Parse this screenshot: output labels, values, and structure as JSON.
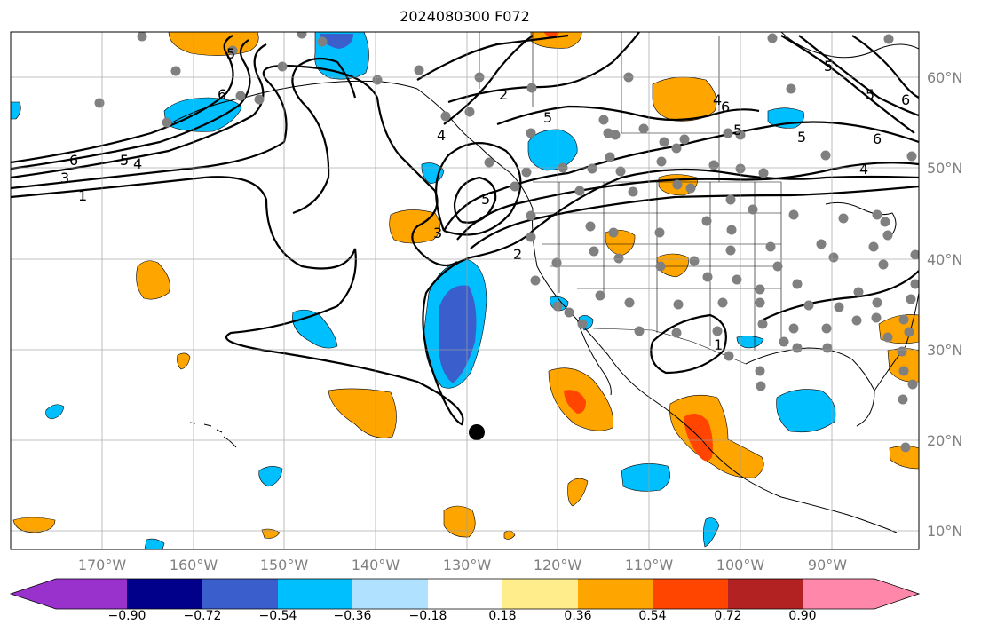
{
  "title": "2024080300 F072",
  "map": {
    "lon_labels": [
      "170°W",
      "160°W",
      "150°W",
      "140°W",
      "130°W",
      "120°W",
      "110°W",
      "100°W",
      "90°W"
    ],
    "lat_labels": [
      "60°N",
      "50°N",
      "40°N",
      "30°N",
      "20°N",
      "10°N"
    ],
    "contour_labels": [
      "1",
      "2",
      "3",
      "4",
      "5",
      "6",
      "5",
      "2",
      "3",
      "5",
      "5",
      "6",
      "4",
      "6",
      "5",
      "6",
      "5",
      "4",
      "6",
      "4",
      "5",
      "5",
      "1"
    ],
    "anomaly_colors": {
      "orange": "#ffa500",
      "red_orange": "#ff4500",
      "dark_red": "#b22222",
      "deep_sky_blue": "#00bfff",
      "royal_blue": "#3a5fcd",
      "light_blue": "#b0e2ff"
    },
    "station_marker_color": "#808080",
    "storm_marker_color": "#000000"
  },
  "colorbar": {
    "tick_labels": [
      "−0.90",
      "−0.72",
      "−0.54",
      "−0.36",
      "−0.18",
      "0.18",
      "0.36",
      "0.54",
      "0.72",
      "0.90"
    ],
    "colors": [
      "#9932cc",
      "#00008b",
      "#3a5fcd",
      "#00bfff",
      "#b0e2ff",
      "#ffffff",
      "#ffec8b",
      "#ffa500",
      "#ff4500",
      "#b22222",
      "#ff88aa"
    ]
  }
}
